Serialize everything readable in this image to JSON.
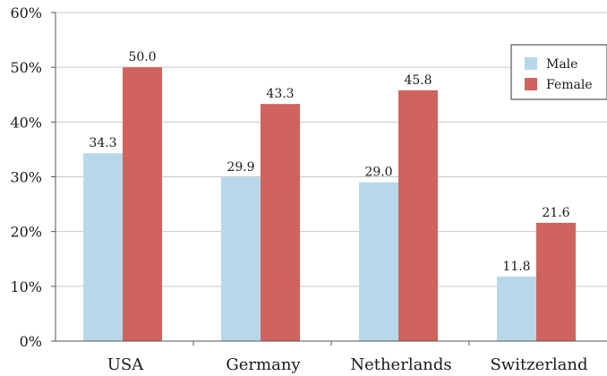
{
  "chart_data": {
    "type": "bar",
    "categories": [
      "USA",
      "Germany",
      "Netherlands",
      "Switzerland"
    ],
    "series": [
      {
        "name": "Male",
        "values": [
          34.3,
          29.9,
          29.0,
          11.8
        ],
        "labels": [
          "34.3",
          "29.9",
          "29.0",
          "11.8"
        ],
        "color": "#b8d8ea"
      },
      {
        "name": "Female",
        "values": [
          50.0,
          43.3,
          45.8,
          21.6
        ],
        "labels": [
          "50.0",
          "43.3",
          "45.8",
          "21.6"
        ],
        "color": "#d0635d"
      }
    ],
    "y_ticks": [
      "0%",
      "10%",
      "20%",
      "30%",
      "40%",
      "50%",
      "60%"
    ],
    "y_tick_values": [
      0,
      10,
      20,
      30,
      40,
      50,
      60
    ],
    "ylim": [
      0,
      60
    ],
    "grid": true,
    "legend_position": "top-right",
    "title": "",
    "xlabel": "",
    "ylabel": ""
  }
}
